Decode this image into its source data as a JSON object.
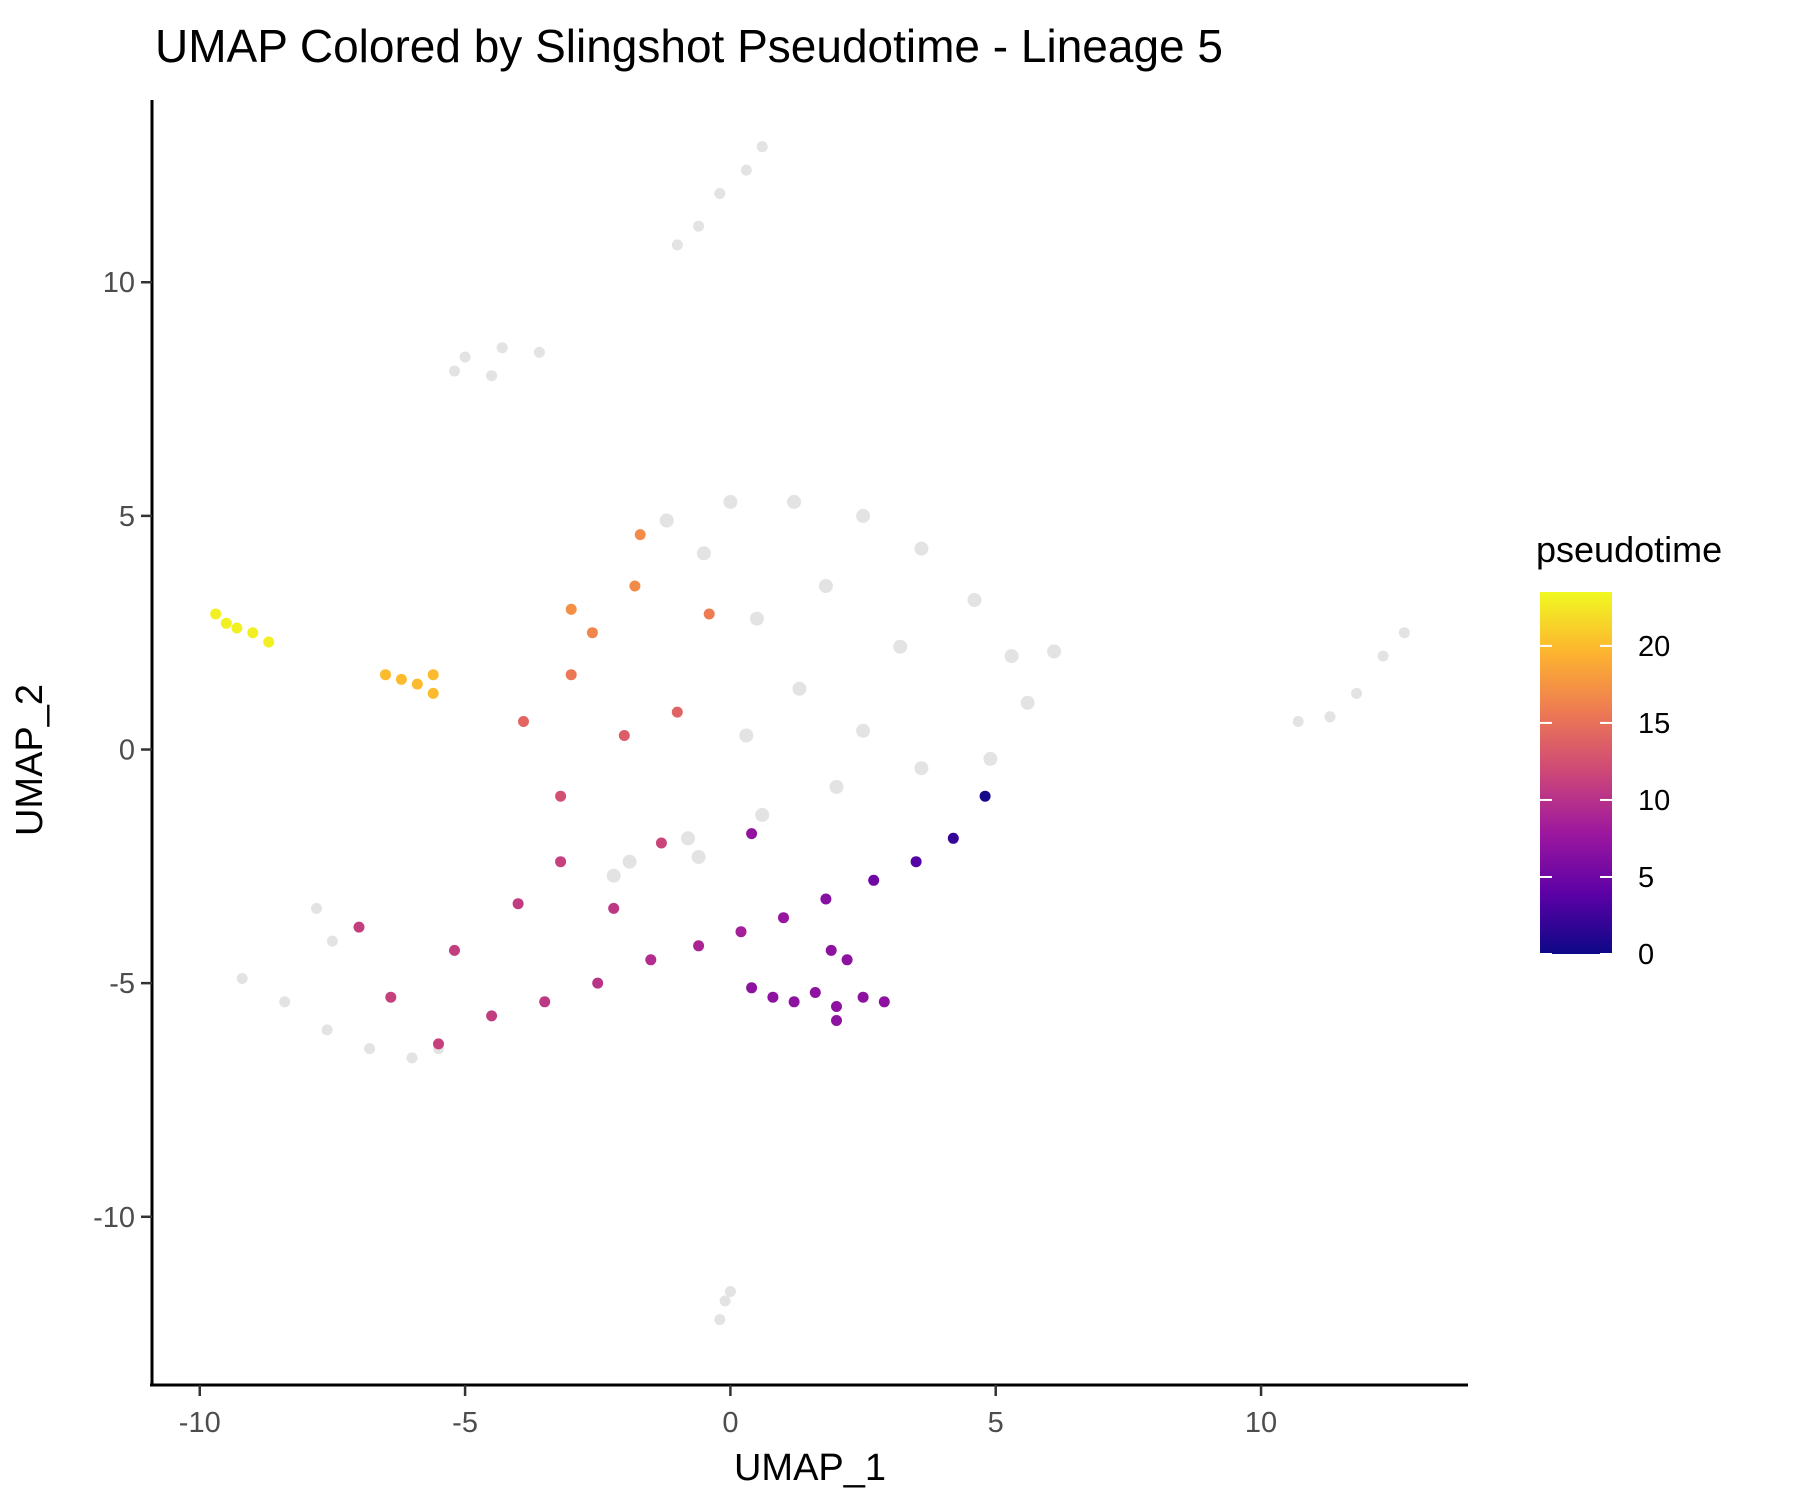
{
  "chart_data": {
    "type": "scatter",
    "title": "UMAP Colored by Slingshot Pseudotime - Lineage 5",
    "xlabel": "UMAP_1",
    "ylabel": "UMAP_2",
    "xlim": [
      -10.9,
      13.9
    ],
    "ylim": [
      -13.6,
      13.9
    ],
    "x_ticks": [
      -10,
      -5,
      0,
      5,
      10
    ],
    "y_ticks": [
      -10,
      -5,
      0,
      5,
      10
    ],
    "grid": false,
    "legend": {
      "title": "pseudotime",
      "placement": "right",
      "type": "colorbar",
      "range": [
        0,
        23.5
      ],
      "ticks": [
        0,
        5,
        10,
        15,
        20
      ],
      "palette": [
        "#0d0887",
        "#5c01a6",
        "#9c179e",
        "#cc4778",
        "#ed7953",
        "#fdb42f",
        "#f0f921"
      ]
    },
    "na_color": "#e3e3e3",
    "clusters": [
      {
        "name": "top island",
        "pseudotime": null,
        "points": [
          [
            0.6,
            12.9
          ],
          [
            0.3,
            12.4
          ],
          [
            -0.2,
            11.9
          ],
          [
            -0.6,
            11.2
          ],
          [
            -1.0,
            10.8
          ]
        ]
      },
      {
        "name": "upper-left island",
        "pseudotime": null,
        "points": [
          [
            -5.0,
            8.4
          ],
          [
            -4.3,
            8.6
          ],
          [
            -3.6,
            8.5
          ],
          [
            -5.2,
            8.1
          ],
          [
            -4.5,
            8.0
          ]
        ]
      },
      {
        "name": "main grey body",
        "pseudotime": null,
        "points": [
          [
            -1.2,
            4.9
          ],
          [
            0.0,
            5.3
          ],
          [
            1.2,
            5.3
          ],
          [
            2.5,
            5.0
          ],
          [
            3.6,
            4.3
          ],
          [
            4.6,
            3.2
          ],
          [
            5.3,
            2.0
          ],
          [
            6.1,
            2.1
          ],
          [
            5.6,
            1.0
          ],
          [
            4.9,
            -0.2
          ],
          [
            3.6,
            -0.4
          ],
          [
            2.5,
            0.4
          ],
          [
            1.3,
            1.3
          ],
          [
            0.5,
            2.8
          ],
          [
            1.8,
            3.5
          ],
          [
            3.2,
            2.2
          ],
          [
            2.0,
            -0.8
          ],
          [
            0.6,
            -1.4
          ],
          [
            -0.6,
            -2.3
          ],
          [
            -1.9,
            -2.4
          ],
          [
            -2.2,
            -2.7
          ],
          [
            -0.8,
            -1.9
          ],
          [
            0.3,
            0.3
          ],
          [
            -0.5,
            4.2
          ]
        ]
      },
      {
        "name": "lower-left grey",
        "pseudotime": null,
        "points": [
          [
            -9.2,
            -4.9
          ],
          [
            -8.4,
            -5.4
          ],
          [
            -7.6,
            -6.0
          ],
          [
            -6.8,
            -6.4
          ],
          [
            -7.5,
            -4.1
          ],
          [
            -7.8,
            -3.4
          ],
          [
            -6.0,
            -6.6
          ],
          [
            -5.5,
            -6.4
          ]
        ]
      },
      {
        "name": "far-right island",
        "pseudotime": null,
        "points": [
          [
            10.7,
            0.6
          ],
          [
            11.3,
            0.7
          ],
          [
            11.8,
            1.2
          ],
          [
            12.3,
            2.0
          ],
          [
            12.7,
            2.5
          ]
        ]
      },
      {
        "name": "bottom island",
        "pseudotime": null,
        "points": [
          [
            -0.2,
            -12.2
          ],
          [
            -0.1,
            -11.8
          ],
          [
            0.0,
            -11.6
          ]
        ]
      },
      {
        "name": "main colored trajectory",
        "pseudotime": "varies",
        "points": [
          [
            4.8,
            -1.0,
            0.5
          ],
          [
            4.2,
            -1.9,
            2.0
          ],
          [
            3.5,
            -2.4,
            3.5
          ],
          [
            2.7,
            -2.8,
            5.0
          ],
          [
            1.8,
            -3.2,
            6.5
          ],
          [
            1.0,
            -3.6,
            7.5
          ],
          [
            0.2,
            -3.9,
            8.5
          ],
          [
            -0.6,
            -4.2,
            9.0
          ],
          [
            -1.5,
            -4.5,
            9.6
          ],
          [
            -2.5,
            -5.0,
            10.2
          ],
          [
            -3.5,
            -5.4,
            10.6
          ],
          [
            -4.5,
            -5.7,
            10.9
          ],
          [
            -5.5,
            -6.3,
            11.2
          ],
          [
            -6.4,
            -5.3,
            11.3
          ],
          [
            -5.2,
            -4.3,
            11.0
          ],
          [
            -4.0,
            -3.3,
            10.8
          ],
          [
            -3.2,
            -2.4,
            11.2
          ],
          [
            -3.2,
            -1.0,
            12.5
          ],
          [
            -2.0,
            0.3,
            13.5
          ],
          [
            -1.0,
            0.8,
            14.0
          ],
          [
            -3.9,
            0.6,
            14.2
          ],
          [
            -3.0,
            1.6,
            15.5
          ],
          [
            -2.6,
            2.5,
            16.5
          ],
          [
            -3.0,
            3.0,
            17.2
          ],
          [
            -1.8,
            3.5,
            16.8
          ],
          [
            -1.7,
            4.6,
            16.9
          ],
          [
            -0.4,
            2.9,
            15.8
          ],
          [
            -1.3,
            -2.0,
            11.6
          ],
          [
            -2.2,
            -3.4,
            10.5
          ],
          [
            0.4,
            -1.8,
            7.2
          ]
        ]
      },
      {
        "name": "yellow outlier cluster",
        "pseudotime": 23.0,
        "points": [
          [
            -9.7,
            2.9
          ],
          [
            -9.5,
            2.7
          ],
          [
            -9.3,
            2.6
          ],
          [
            -9.0,
            2.5
          ],
          [
            -8.7,
            2.3
          ]
        ]
      },
      {
        "name": "orange outlier cluster",
        "pseudotime": 20.0,
        "points": [
          [
            -6.5,
            1.6
          ],
          [
            -6.2,
            1.5
          ],
          [
            -5.9,
            1.4
          ],
          [
            -5.6,
            1.6
          ],
          [
            -5.6,
            1.2
          ]
        ]
      },
      {
        "name": "purple scattered cells",
        "pseudotime": 7.0,
        "points": [
          [
            0.4,
            -5.1
          ],
          [
            0.8,
            -5.3
          ],
          [
            1.2,
            -5.4
          ],
          [
            1.6,
            -5.2
          ],
          [
            2.0,
            -5.5
          ],
          [
            2.0,
            -5.8
          ],
          [
            2.5,
            -5.3
          ],
          [
            2.9,
            -5.4
          ],
          [
            1.9,
            -4.3
          ],
          [
            2.2,
            -4.5
          ]
        ]
      },
      {
        "name": "lone point",
        "pseudotime": 11.0,
        "points": [
          [
            -7.0,
            -3.8
          ]
        ]
      }
    ]
  }
}
